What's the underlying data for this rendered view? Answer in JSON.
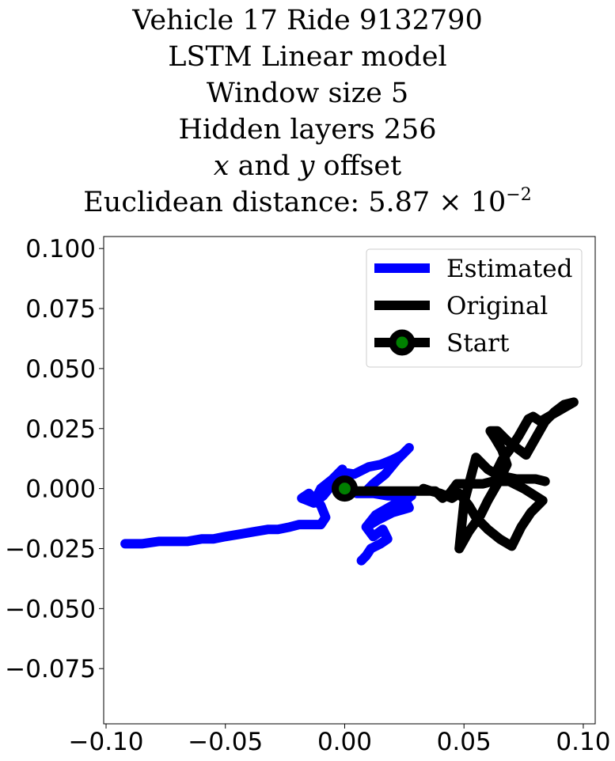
{
  "title": {
    "line1": "Vehicle 17 Ride 9132790",
    "line2": "LSTM Linear model",
    "line3": "Window size 5",
    "line4": "Hidden layers 256",
    "line5_x": "x",
    "line5_and": " and ",
    "line5_y": "y",
    "line5_rest": " offset",
    "line6_prefix": "Euclidean distance: ",
    "line6_mantissa": "5.87 × 10",
    "line6_exponent": "−2"
  },
  "chart_data": {
    "type": "line",
    "xlim": [
      -0.101,
      0.105
    ],
    "ylim": [
      -0.098,
      0.105
    ],
    "x_ticks": [
      -0.1,
      -0.05,
      0.0,
      0.05,
      0.1
    ],
    "x_tick_labels": [
      "−0.10",
      "−0.05",
      "0.00",
      "0.05",
      "0.10"
    ],
    "y_ticks": [
      0.1,
      0.075,
      0.05,
      0.025,
      0.0,
      -0.025,
      -0.05,
      -0.075
    ],
    "y_tick_labels": [
      "0.100",
      "0.075",
      "0.050",
      "0.025",
      "0.000",
      "−0.025",
      "−0.050",
      "−0.075"
    ],
    "grid": false,
    "legend_position": "top-right",
    "legend": [
      "Estimated",
      "Original",
      "Start"
    ],
    "series": [
      {
        "name": "Estimated",
        "color": "#0000ff",
        "x": [
          -0.092,
          -0.085,
          -0.078,
          -0.072,
          -0.066,
          -0.06,
          -0.055,
          -0.05,
          -0.044,
          -0.038,
          -0.032,
          -0.028,
          -0.023,
          -0.019,
          -0.015,
          -0.01,
          -0.008,
          -0.01,
          -0.015,
          -0.018,
          -0.013,
          -0.009,
          -0.005,
          -0.003,
          -0.001,
          -0.005,
          -0.01,
          -0.012,
          -0.006,
          -0.002,
          0.004,
          0.01,
          0.015,
          0.02,
          0.024,
          0.027,
          0.022,
          0.017,
          0.012,
          0.008,
          0.004,
          0.001,
          0.005,
          0.012,
          0.018,
          0.023,
          0.028,
          0.024,
          0.019,
          0.014,
          0.009,
          0.013,
          0.02,
          0.025,
          0.027,
          0.02,
          0.014,
          0.009,
          0.012,
          0.016,
          0.018,
          0.015,
          0.011,
          0.009,
          0.007
        ],
        "y": [
          -0.023,
          -0.023,
          -0.022,
          -0.022,
          -0.022,
          -0.021,
          -0.021,
          -0.02,
          -0.019,
          -0.018,
          -0.017,
          -0.017,
          -0.016,
          -0.015,
          -0.015,
          -0.015,
          -0.012,
          -0.007,
          -0.002,
          -0.004,
          -0.006,
          -0.003,
          0.002,
          0.006,
          0.008,
          0.004,
          0.0,
          -0.004,
          0.003,
          0.007,
          0.006,
          0.009,
          0.01,
          0.012,
          0.014,
          0.017,
          0.012,
          0.006,
          0.002,
          -0.002,
          -0.001,
          0.0,
          -0.002,
          -0.002,
          -0.003,
          -0.003,
          -0.003,
          -0.006,
          -0.009,
          -0.012,
          -0.016,
          -0.011,
          -0.007,
          -0.004,
          -0.008,
          -0.01,
          -0.013,
          -0.016,
          -0.02,
          -0.017,
          -0.021,
          -0.023,
          -0.025,
          -0.028,
          -0.03
        ]
      },
      {
        "name": "Original",
        "color": "#000000",
        "x": [
          0.0,
          0.01,
          0.02,
          0.03,
          0.036,
          0.04,
          0.045,
          0.048,
          0.052,
          0.055,
          0.06,
          0.065,
          0.07,
          0.074,
          0.078,
          0.083,
          0.075,
          0.067,
          0.06,
          0.055,
          0.05,
          0.048,
          0.052,
          0.057,
          0.06,
          0.064,
          0.068,
          0.066,
          0.063,
          0.061,
          0.064,
          0.068,
          0.072,
          0.076,
          0.08,
          0.084,
          0.088,
          0.092,
          0.096,
          0.089,
          0.082,
          0.079,
          0.077,
          0.073,
          0.069,
          0.066,
          0.064,
          0.063,
          0.067,
          0.072,
          0.076,
          0.08,
          0.084,
          0.08,
          0.075,
          0.07,
          0.066,
          0.062,
          0.058,
          0.054,
          0.05,
          0.047,
          0.044,
          0.041,
          0.038,
          0.036,
          0.033
        ],
        "y": [
          -0.001,
          -0.001,
          -0.001,
          -0.001,
          -0.001,
          -0.002,
          -0.004,
          -0.002,
          -0.007,
          -0.012,
          -0.017,
          -0.021,
          -0.024,
          -0.016,
          -0.01,
          -0.005,
          0.0,
          0.004,
          0.008,
          0.013,
          -0.006,
          -0.025,
          -0.018,
          -0.011,
          -0.005,
          0.002,
          0.01,
          0.016,
          0.021,
          0.024,
          0.024,
          0.02,
          0.017,
          0.014,
          0.021,
          0.028,
          0.032,
          0.035,
          0.036,
          0.032,
          0.028,
          0.03,
          0.029,
          0.022,
          0.016,
          0.012,
          0.008,
          0.006,
          0.005,
          0.004,
          0.004,
          0.004,
          0.003,
          0.004,
          0.004,
          0.003,
          0.003,
          0.003,
          0.002,
          0.002,
          0.002,
          0.002,
          -0.002,
          -0.004,
          -0.001,
          -0.001,
          0.0
        ]
      },
      {
        "name": "Start",
        "color": "#000000",
        "marker_fill": "#008000",
        "x": [
          0.0
        ],
        "y": [
          0.0
        ]
      }
    ]
  }
}
